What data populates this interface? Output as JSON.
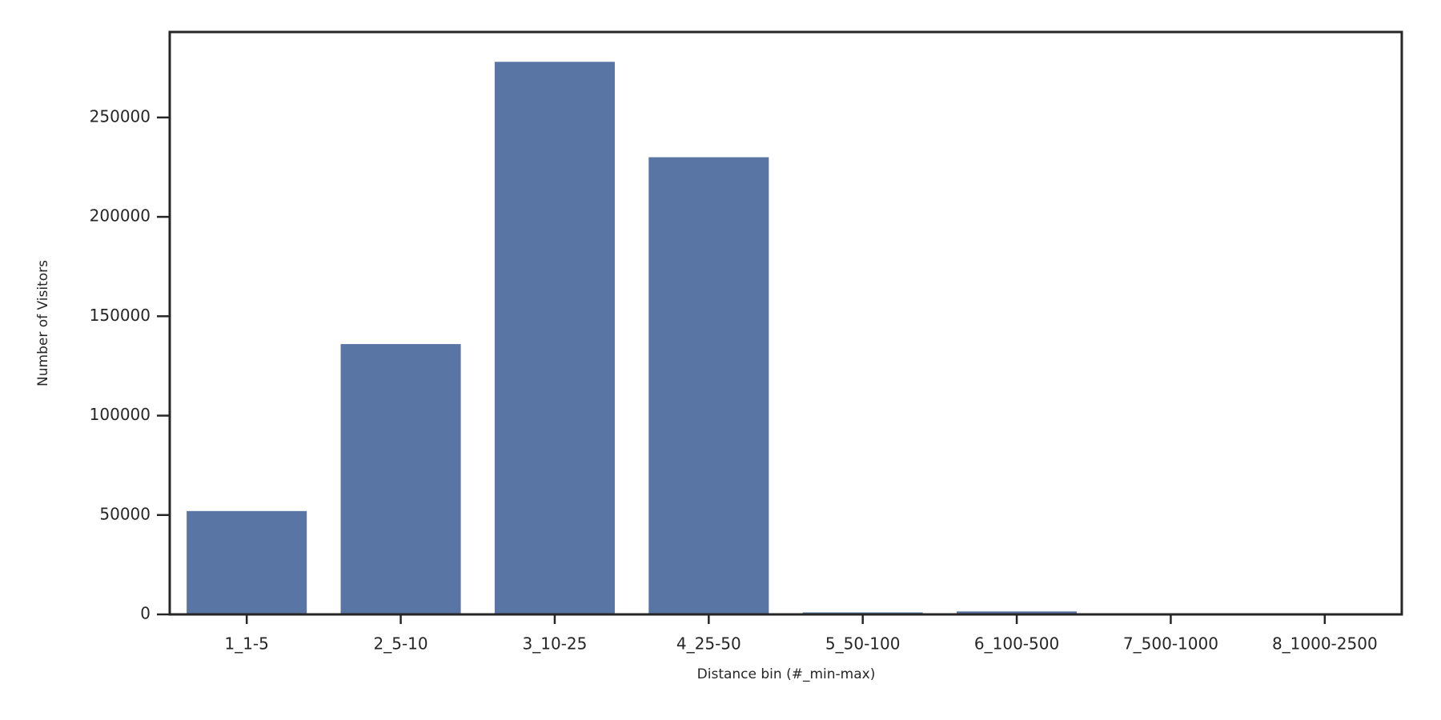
{
  "chart_data": {
    "type": "bar",
    "x_label": "Distance bin (#_min-max)",
    "y_label": "Number of Visitors",
    "categories": [
      "1_1-5",
      "2_5-10",
      "3_10-25",
      "4_25-50",
      "5_50-100",
      "6_100-500",
      "7_500-1000",
      "8_1000-2500"
    ],
    "values": [
      52000,
      136000,
      278000,
      230000,
      1000,
      1500,
      200,
      50
    ],
    "color": "#5975a4",
    "ylim": [
      0,
      293000
    ],
    "yticks": [
      0,
      50000,
      100000,
      150000,
      200000,
      250000
    ],
    "grid": false
  }
}
